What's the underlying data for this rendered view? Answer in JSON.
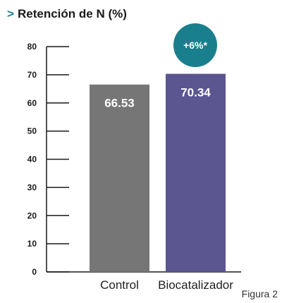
{
  "header": {
    "marker": ">",
    "title": "Retención de N (%)"
  },
  "caption": "Figura 2",
  "badge": {
    "text": "+6%*"
  },
  "colors": {
    "control_bar": "#767676",
    "biocatalizador_bar": "#5b5590",
    "badge": "#1a7f8c",
    "marker": "#1a7f8c",
    "axis": "#1a1a1a"
  },
  "chart_data": {
    "type": "bar",
    "title": "Retención de N (%)",
    "categories": [
      "Control",
      "Biocatalizador"
    ],
    "values": [
      66.53,
      70.34
    ],
    "value_labels": [
      "66.53",
      "70.34"
    ],
    "ylim": [
      0,
      80
    ],
    "yticks": [
      0,
      10,
      20,
      30,
      40,
      50,
      60,
      70,
      80
    ],
    "xlabel": "",
    "ylabel": "",
    "grid": false,
    "annotation": "+6%*"
  }
}
